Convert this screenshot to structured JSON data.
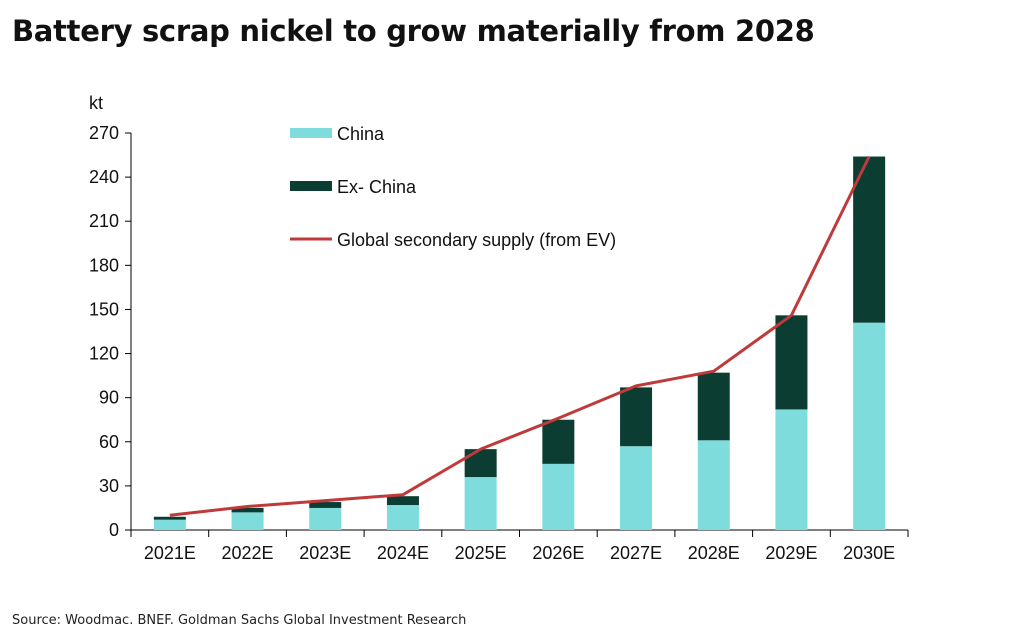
{
  "title": "Battery scrap nickel to grow materially from 2028",
  "source": "Source: Woodmac. BNEF. Goldman Sachs Global Investment Research",
  "chart_data": {
    "type": "bar",
    "stacked": true,
    "ylabel": "kt",
    "ylim": [
      0,
      270
    ],
    "yticks": [
      0,
      30,
      60,
      90,
      120,
      150,
      180,
      210,
      240,
      270
    ],
    "categories": [
      "2021E",
      "2022E",
      "2023E",
      "2024E",
      "2025E",
      "2026E",
      "2027E",
      "2028E",
      "2029E",
      "2030E"
    ],
    "series": [
      {
        "name": "China",
        "kind": "bar",
        "color": "#7fdcdc",
        "values": [
          7,
          12,
          15,
          17,
          36,
          45,
          57,
          61,
          82,
          141
        ]
      },
      {
        "name": "Ex- China",
        "kind": "bar",
        "color": "#0b3d33",
        "values": [
          2,
          3,
          4,
          6,
          19,
          30,
          40,
          46,
          64,
          113
        ]
      },
      {
        "name": "Global secondary supply (from EV)",
        "kind": "line",
        "color": "#c0393b",
        "values": [
          10,
          16,
          20,
          24,
          55,
          76,
          98,
          108,
          146,
          254
        ]
      }
    ],
    "legend_position": "top-left",
    "grid": false
  }
}
